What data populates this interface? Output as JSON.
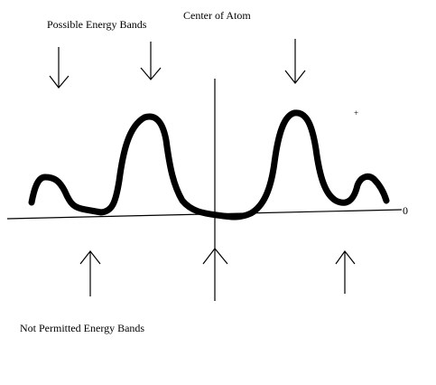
{
  "labels": {
    "top_left": "Possible Energy Bands",
    "top_center": "Center of Atom",
    "axis_end": "0",
    "plus": "+",
    "bottom": "Not Permitted Energy Bands"
  }
}
